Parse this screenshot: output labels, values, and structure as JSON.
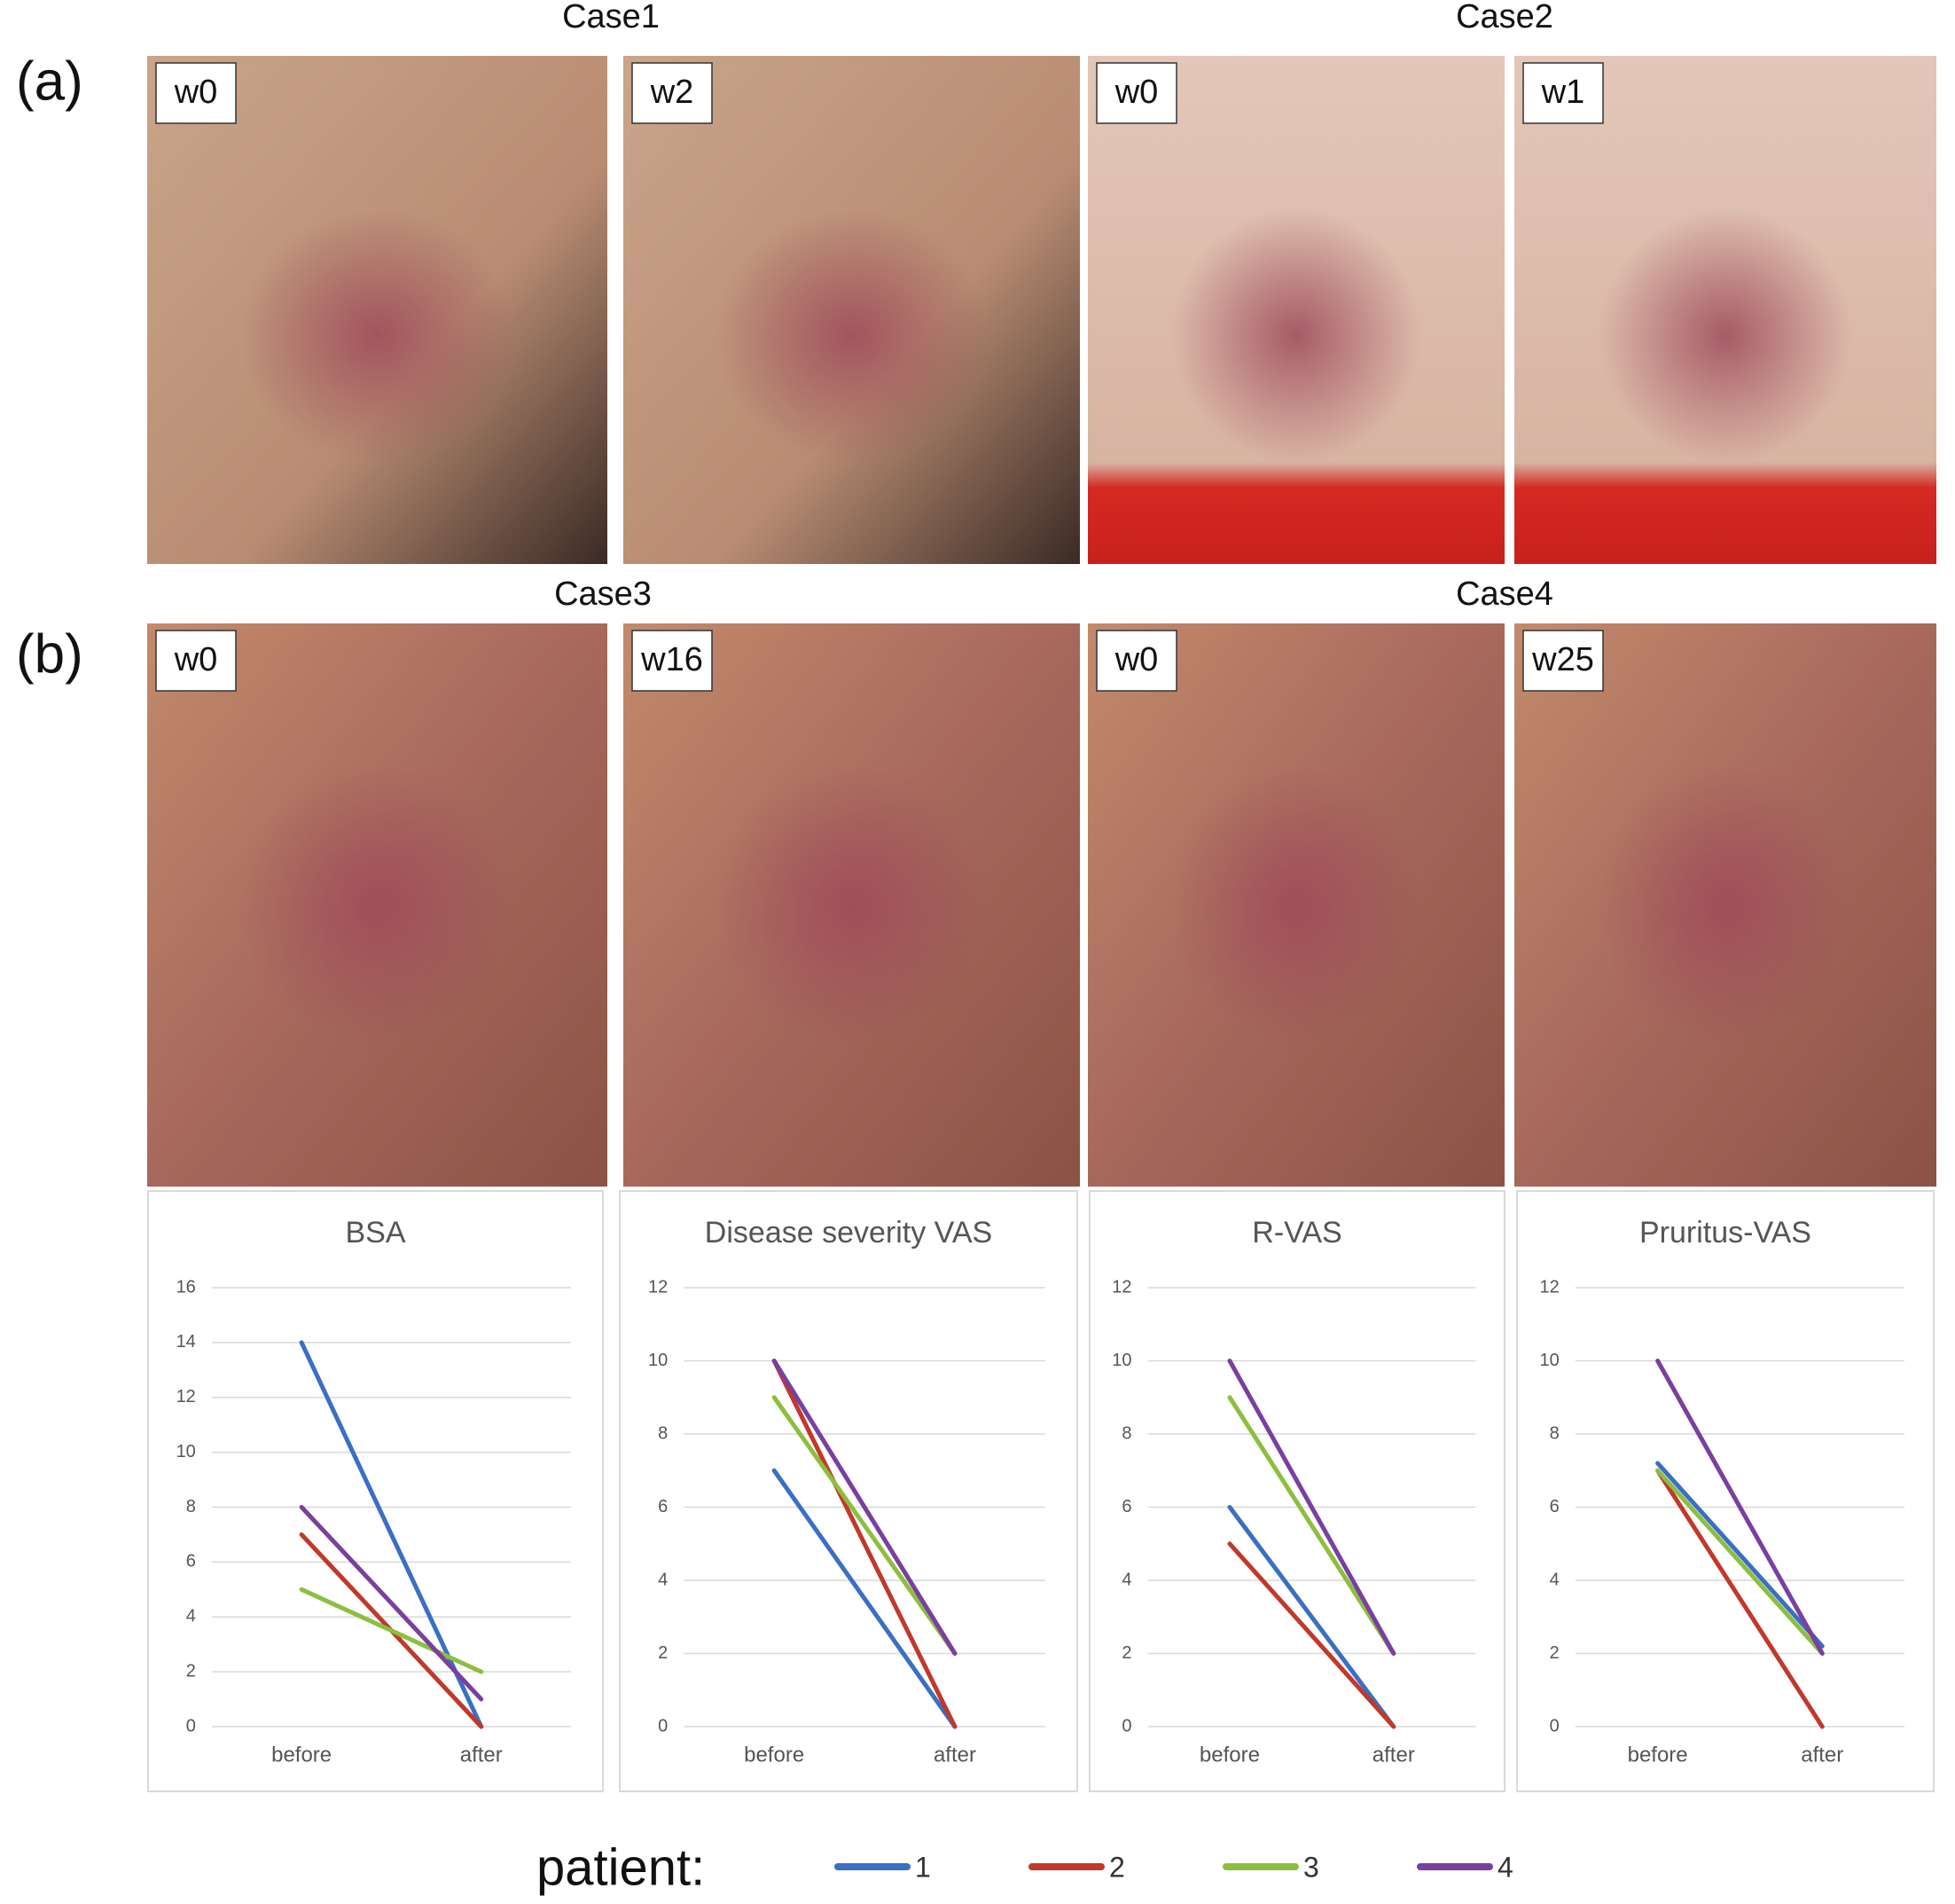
{
  "panels": [
    {
      "label": "(a)",
      "cases": [
        {
          "title": "Case1",
          "photos": [
            "w0",
            "w2"
          ]
        },
        {
          "title": "Case2",
          "photos": [
            "w0",
            "w1"
          ]
        }
      ]
    },
    {
      "label": "(b)",
      "cases": [
        {
          "title": "Case3",
          "photos": [
            "w0",
            "w16"
          ]
        },
        {
          "title": "Case4",
          "photos": [
            "w0",
            "w25"
          ]
        }
      ]
    }
  ],
  "chart_data": [
    {
      "type": "line",
      "title": "BSA",
      "categories": [
        "before",
        "after"
      ],
      "ylim": [
        0,
        16
      ],
      "yticks": [
        0,
        2,
        4,
        6,
        8,
        10,
        12,
        14,
        16
      ],
      "grid": true,
      "series": [
        {
          "name": "1",
          "color": "#3a6fc4",
          "values": [
            14,
            0
          ]
        },
        {
          "name": "2",
          "color": "#c0392b",
          "values": [
            7,
            0
          ]
        },
        {
          "name": "3",
          "color": "#8cbf3f",
          "values": [
            5,
            2
          ]
        },
        {
          "name": "4",
          "color": "#7a3fa0",
          "values": [
            8,
            1
          ]
        }
      ]
    },
    {
      "type": "line",
      "title": "Disease severity VAS",
      "categories": [
        "before",
        "after"
      ],
      "ylim": [
        0,
        12
      ],
      "yticks": [
        0,
        2,
        4,
        6,
        8,
        10,
        12
      ],
      "grid": true,
      "series": [
        {
          "name": "1",
          "color": "#3a6fc4",
          "values": [
            7,
            0
          ]
        },
        {
          "name": "2",
          "color": "#c0392b",
          "values": [
            10,
            0
          ]
        },
        {
          "name": "3",
          "color": "#8cbf3f",
          "values": [
            9,
            2
          ]
        },
        {
          "name": "4",
          "color": "#7a3fa0",
          "values": [
            10,
            2
          ]
        }
      ]
    },
    {
      "type": "line",
      "title": "R-VAS",
      "categories": [
        "before",
        "after"
      ],
      "ylim": [
        0,
        12
      ],
      "yticks": [
        0,
        2,
        4,
        6,
        8,
        10,
        12
      ],
      "grid": true,
      "series": [
        {
          "name": "1",
          "color": "#3a6fc4",
          "values": [
            6,
            0
          ]
        },
        {
          "name": "2",
          "color": "#c0392b",
          "values": [
            5,
            0
          ]
        },
        {
          "name": "3",
          "color": "#8cbf3f",
          "values": [
            9,
            2
          ]
        },
        {
          "name": "4",
          "color": "#7a3fa0",
          "values": [
            10,
            2
          ]
        }
      ]
    },
    {
      "type": "line",
      "title": "Pruritus-VAS",
      "categories": [
        "before",
        "after"
      ],
      "ylim": [
        0,
        12
      ],
      "yticks": [
        0,
        2,
        4,
        6,
        8,
        10,
        12
      ],
      "grid": true,
      "series": [
        {
          "name": "1",
          "color": "#3a6fc4",
          "values": [
            7.2,
            2.2
          ]
        },
        {
          "name": "2",
          "color": "#c0392b",
          "values": [
            7,
            0
          ]
        },
        {
          "name": "3",
          "color": "#8cbf3f",
          "values": [
            7,
            2
          ]
        },
        {
          "name": "4",
          "color": "#7a3fa0",
          "values": [
            10,
            2
          ]
        }
      ]
    }
  ],
  "legend": {
    "title": "patient:"
  }
}
